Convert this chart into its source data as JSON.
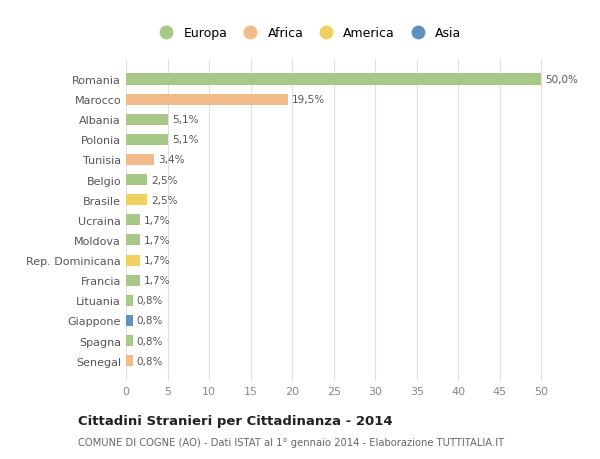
{
  "categories": [
    "Senegal",
    "Spagna",
    "Giappone",
    "Lituania",
    "Francia",
    "Rep. Dominicana",
    "Moldova",
    "Ucraina",
    "Brasile",
    "Belgio",
    "Tunisia",
    "Polonia",
    "Albania",
    "Marocco",
    "Romania"
  ],
  "values": [
    0.8,
    0.8,
    0.8,
    0.8,
    1.7,
    1.7,
    1.7,
    1.7,
    2.5,
    2.5,
    3.4,
    5.1,
    5.1,
    19.5,
    50.0
  ],
  "labels": [
    "0,8%",
    "0,8%",
    "0,8%",
    "0,8%",
    "1,7%",
    "1,7%",
    "1,7%",
    "1,7%",
    "2,5%",
    "2,5%",
    "3,4%",
    "5,1%",
    "5,1%",
    "19,5%",
    "50,0%"
  ],
  "colors": [
    "#f0bb88",
    "#a8c888",
    "#6090c0",
    "#a8c888",
    "#a8c888",
    "#f0d060",
    "#a8c888",
    "#a8c888",
    "#f0d060",
    "#a8c888",
    "#f0bb88",
    "#a8c888",
    "#a8c888",
    "#f0bb88",
    "#a8c888"
  ],
  "legend_colors": {
    "Europa": "#a8c888",
    "Africa": "#f0bb88",
    "America": "#f0d060",
    "Asia": "#6090c0"
  },
  "legend_order": [
    "Europa",
    "Africa",
    "America",
    "Asia"
  ],
  "title": "Cittadini Stranieri per Cittadinanza - 2014",
  "subtitle": "COMUNE DI COGNE (AO) - Dati ISTAT al 1° gennaio 2014 - Elaborazione TUTTITALIA.IT",
  "xlim": [
    0,
    52
  ],
  "xticks": [
    0,
    5,
    10,
    15,
    20,
    25,
    30,
    35,
    40,
    45,
    50
  ],
  "bg_color": "#ffffff",
  "grid_color": "#e0e0e0",
  "bar_height": 0.55
}
